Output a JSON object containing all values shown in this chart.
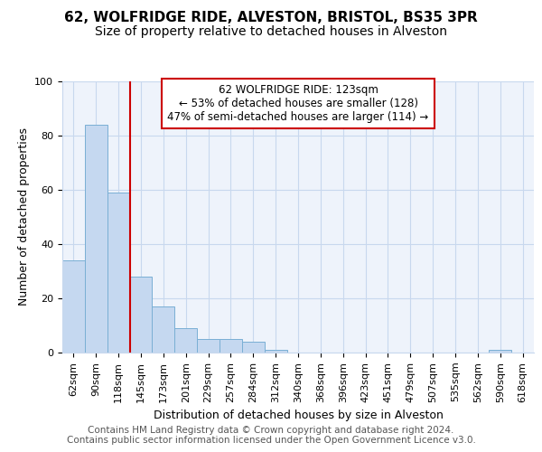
{
  "title1": "62, WOLFRIDGE RIDE, ALVESTON, BRISTOL, BS35 3PR",
  "title2": "Size of property relative to detached houses in Alveston",
  "xlabel": "Distribution of detached houses by size in Alveston",
  "ylabel": "Number of detached properties",
  "bar_values": [
    34,
    84,
    59,
    28,
    17,
    9,
    5,
    5,
    4,
    1,
    0,
    0,
    0,
    0,
    0,
    0,
    0,
    0,
    0,
    1,
    0
  ],
  "bar_labels": [
    "62sqm",
    "90sqm",
    "118sqm",
    "145sqm",
    "173sqm",
    "201sqm",
    "229sqm",
    "257sqm",
    "284sqm",
    "312sqm",
    "340sqm",
    "368sqm",
    "396sqm",
    "423sqm",
    "451sqm",
    "479sqm",
    "507sqm",
    "535sqm",
    "562sqm",
    "590sqm",
    "618sqm"
  ],
  "bar_color": "#c5d8f0",
  "bar_edge_color": "#7aafd4",
  "bar_edge_width": 0.7,
  "ylim": [
    0,
    100
  ],
  "yticks": [
    0,
    20,
    40,
    60,
    80,
    100
  ],
  "red_line_index": 2,
  "annotation_text": "62 WOLFRIDGE RIDE: 123sqm\n← 53% of detached houses are smaller (128)\n47% of semi-detached houses are larger (114) →",
  "annotation_box_color": "#ffffff",
  "annotation_box_edge_color": "#cc0000",
  "red_line_color": "#cc0000",
  "grid_color": "#c8d8ee",
  "background_color": "#eef3fb",
  "title1_fontsize": 11,
  "title2_fontsize": 10,
  "xlabel_fontsize": 9,
  "ylabel_fontsize": 9,
  "tick_fontsize": 8,
  "annotation_fontsize": 8.5,
  "footer_text": "Contains HM Land Registry data © Crown copyright and database right 2024.\nContains public sector information licensed under the Open Government Licence v3.0.",
  "footer_fontsize": 7.5
}
